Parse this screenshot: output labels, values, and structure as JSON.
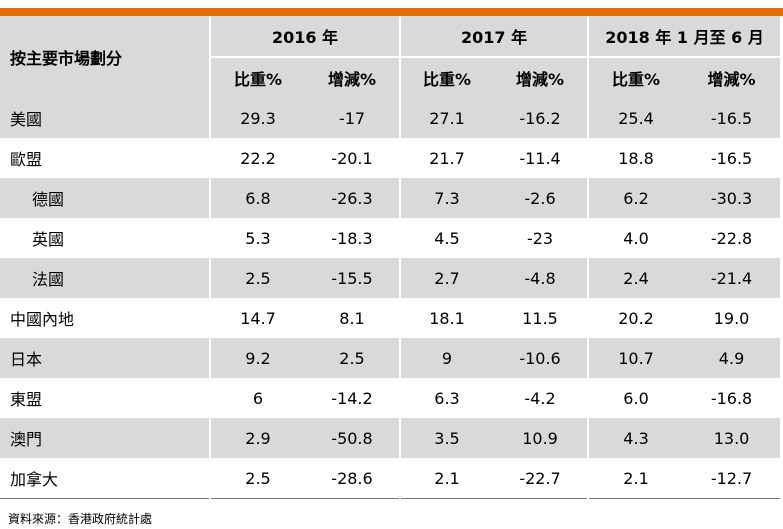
{
  "header": {
    "market_label": "按主要市場劃分",
    "periods": [
      "2016 年",
      "2017 年",
      "2018 年 1 月至 6 月"
    ],
    "sub_share": "比重%",
    "sub_change": "增減%"
  },
  "rows": [
    {
      "name": "美國",
      "indent": false,
      "shaded": true,
      "values": [
        "29.3",
        "-17",
        "27.1",
        "-16.2",
        "25.4",
        "-16.5"
      ]
    },
    {
      "name": "歐盟",
      "indent": false,
      "shaded": false,
      "values": [
        "22.2",
        "-20.1",
        "21.7",
        "-11.4",
        "18.8",
        "-16.5"
      ]
    },
    {
      "name": "德國",
      "indent": true,
      "shaded": true,
      "values": [
        "6.8",
        "-26.3",
        "7.3",
        "-2.6",
        "6.2",
        "-30.3"
      ]
    },
    {
      "name": "英國",
      "indent": true,
      "shaded": false,
      "values": [
        "5.3",
        "-18.3",
        "4.5",
        "-23",
        "4.0",
        "-22.8"
      ]
    },
    {
      "name": "法國",
      "indent": true,
      "shaded": true,
      "values": [
        "2.5",
        "-15.5",
        "2.7",
        "-4.8",
        "2.4",
        "-21.4"
      ]
    },
    {
      "name": "中國內地",
      "indent": false,
      "shaded": false,
      "values": [
        "14.7",
        "8.1",
        "18.1",
        "11.5",
        "20.2",
        "19.0"
      ]
    },
    {
      "name": "日本",
      "indent": false,
      "shaded": true,
      "values": [
        "9.2",
        "2.5",
        "9",
        "-10.6",
        "10.7",
        "4.9"
      ]
    },
    {
      "name": "東盟",
      "indent": false,
      "shaded": false,
      "values": [
        "6",
        "-14.2",
        "6.3",
        "-4.2",
        "6.0",
        "-16.8"
      ]
    },
    {
      "name": "澳門",
      "indent": false,
      "shaded": true,
      "values": [
        "2.9",
        "-50.8",
        "3.5",
        "10.9",
        "4.3",
        "13.0"
      ]
    },
    {
      "name": "加拿大",
      "indent": false,
      "shaded": false,
      "values": [
        "2.5",
        "-28.6",
        "2.1",
        "-22.7",
        "2.1",
        "-12.7"
      ]
    }
  ],
  "source": "資料來源：香港政府統計處",
  "colors": {
    "accent_bar": "#e36c0a",
    "shade": "#d9d9d9"
  }
}
